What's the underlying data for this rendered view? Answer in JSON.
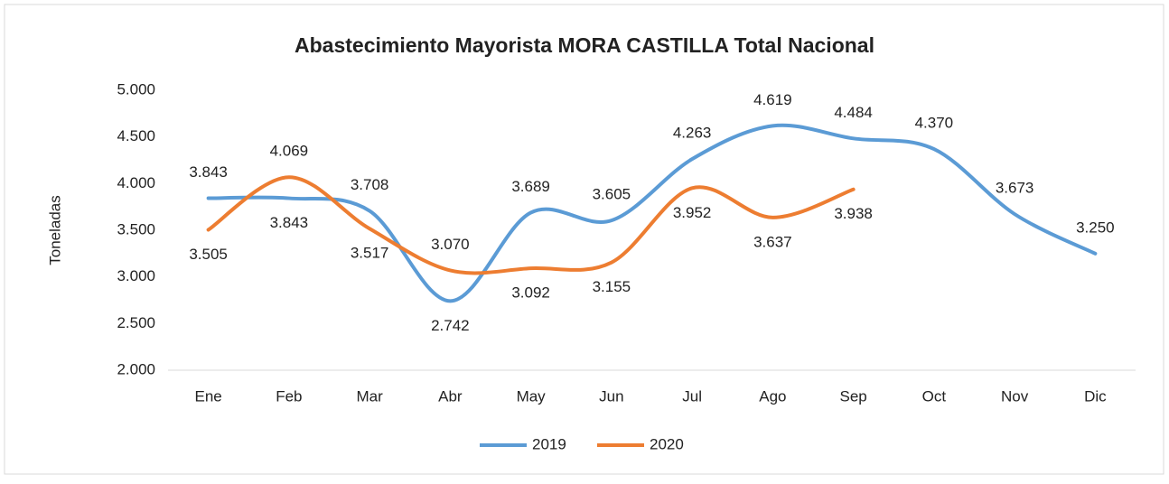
{
  "chart_data": {
    "type": "line",
    "title": "Abastecimiento Mayorista MORA CASTILLA Total Nacional",
    "y_label": "Toneladas",
    "categories": [
      "Ene",
      "Feb",
      "Mar",
      "Abr",
      "May",
      "Jun",
      "Jul",
      "Ago",
      "Sep",
      "Oct",
      "Nov",
      "Dic"
    ],
    "series": [
      {
        "name": "2019",
        "color": "#5b9bd5",
        "values": [
          3843,
          3843,
          3708,
          2742,
          3689,
          3605,
          4263,
          4619,
          4484,
          4370,
          3673,
          3250
        ],
        "value_labels": [
          "3.843",
          "3.843",
          "3.708",
          "2.742",
          "3.689",
          "3.605",
          "4.263",
          "4.619",
          "4.484",
          "4.370",
          "3.673",
          "3.250"
        ]
      },
      {
        "name": "2020",
        "color": "#ed7d31",
        "values": [
          3505,
          4069,
          3517,
          3070,
          3092,
          3155,
          3952,
          3637,
          3938,
          null,
          null,
          null
        ],
        "value_labels": [
          "3.505",
          "4.069",
          "3.517",
          "3.070",
          "3.092",
          "3.155",
          "3.952",
          "3.637",
          "3.938",
          null,
          null,
          null
        ]
      }
    ],
    "smooth": true,
    "ylim": [
      2000,
      5000
    ],
    "yticks": [
      {
        "value": 2000,
        "label": "2.000"
      },
      {
        "value": 2500,
        "label": "2.500"
      },
      {
        "value": 3000,
        "label": "3.000"
      },
      {
        "value": 3500,
        "label": "3.500"
      },
      {
        "value": 4000,
        "label": "4.000"
      },
      {
        "value": 4500,
        "label": "4.500"
      },
      {
        "value": 5000,
        "label": "5.000"
      }
    ],
    "grid": false,
    "legend": "bottom"
  }
}
